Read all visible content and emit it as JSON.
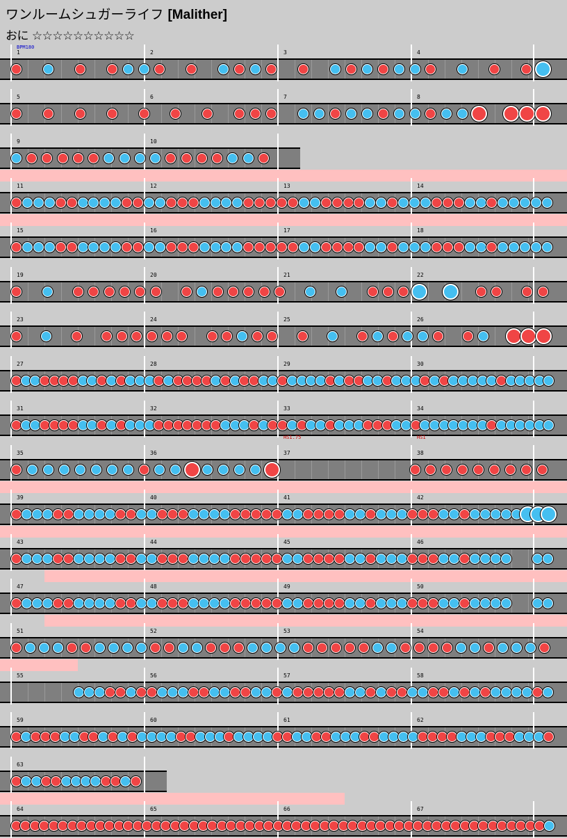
{
  "song": {
    "title": "ワンルームシュガーライフ",
    "difficulty": "[Malither]",
    "course": "おに",
    "stars": "☆☆☆☆☆☆☆☆☆☆"
  },
  "colors": {
    "background": "#cccccc",
    "lane": "#7f7f7f",
    "gogo": "#ffc0c0",
    "don": "#f04545",
    "ka": "#45bff0",
    "bpm_label": "#0000cc",
    "hs_label": "#cc0000"
  },
  "labels": {
    "bpm": "BPM180",
    "hs1": "HS1.75",
    "hs2": "HS1"
  },
  "rows": [
    {
      "measures": [
        "1",
        "2",
        "3",
        "4"
      ],
      "notes": "d.k.d.dkkd.d.kdkd.d.kdkdkkd.k.d.dK"
    },
    {
      "measures": [
        "5",
        "6",
        "7",
        "8"
      ],
      "notes": "d.d.d.d.d.d.d.ddd.kkdkkdkkdkkD.DDD"
    },
    {
      "measures": [
        "9",
        "10"
      ],
      "notes": "kdddddkkkkddddkkd"
    },
    {
      "measures": [
        "11",
        "12",
        "13",
        "14"
      ],
      "notes": "dkkkddkkkkddkkdddkkkkdddddkkddddkkdkkkdddkkdkkkkk",
      "gogo": [
        [
          0,
          4
        ]
      ]
    },
    {
      "measures": [
        "15",
        "16",
        "17",
        "18"
      ],
      "notes": "dkkkddkkkkddkkdddkkkkdddddkkddddkkdkkkdddkkdkkkkk",
      "gogo": [
        [
          0,
          4
        ]
      ]
    },
    {
      "measures": [
        "19",
        "20",
        "21",
        "22"
      ],
      "notes": "d.k.dddddd.dkddddd.k.k.dddK.K.dd.dd"
    },
    {
      "measures": [
        "23",
        "24",
        "25",
        "26"
      ],
      "notes": "d.k.d.dddddd.ddkdd.d.k.dkdkkd.dk.DDD"
    },
    {
      "measures": [
        "27",
        "28",
        "29",
        "30"
      ],
      "notes": "dkkddddkkdkdkkkdkddddkdkddkkdkkkkdkddkkdkkkdkdkkkkkdkkkkk"
    },
    {
      "measures": [
        "31",
        "32",
        "33",
        "34"
      ],
      "notes": "dkkddddkkdkdkkkdddddddkkkdkddkdkkdkkkdddkkdkkkkkkkdkkkkkk"
    },
    {
      "measures": [
        "35",
        "36",
        "37",
        "38"
      ],
      "notes": "dkkkkkkkdkkDkkkkD........ddddddddd",
      "labels": true
    },
    {
      "measures": [
        "39",
        "40",
        "41",
        "42"
      ],
      "notes": "dkkkddkkkkddkkdddkkkkdddddkkddddkkdkkkdddkkdkkkkkKKK",
      "gogo": [
        [
          0,
          4
        ]
      ]
    },
    {
      "measures": [
        "43",
        "44",
        "45",
        "46"
      ],
      "notes": "dkkkddkkkkddkkdddkkkkdddddkkddddkkdkkkdddkkdkkkk..kk",
      "gogo": [
        [
          0,
          4
        ]
      ]
    },
    {
      "measures": [
        "47",
        "48",
        "49",
        "50"
      ],
      "notes": "dkkkddkkkkddkkdddkkkkdddddkkddddkkdkkkdddkkdkkkk..kk",
      "gogo": [
        [
          0.25,
          4
        ]
      ]
    },
    {
      "measures": [
        "51",
        "52",
        "53",
        "54"
      ],
      "notes": "dkkkddkkkkddkkdddkkkkdddddkkddddkkdkkkd",
      "gogo": [
        [
          0.25,
          4
        ]
      ]
    },
    {
      "measures": [
        "55",
        "56",
        "57",
        "58"
      ],
      "notes": "......kkkddkddkkkddkkddkkdkdddddkkdkddkkddkdkdkkkkdk",
      "gogo": [
        [
          0,
          0.5
        ]
      ]
    },
    {
      "measures": [
        "59",
        "60",
        "61",
        "62"
      ],
      "notes": "dkdddkkddkdkdkkkkddkkkdkkkkddkkddkkkddkkkkddddkkkdddkkkd"
    },
    {
      "measures": [
        "63"
      ],
      "notes": "dkkddkkkkddkd"
    },
    {
      "measures": [
        "64",
        "65",
        "66",
        "67"
      ],
      "notes": "dddddddddddddddddddddddddddddddddddddddddddddddddddddddddk",
      "gogo": [
        [
          0,
          2.5
        ]
      ]
    }
  ]
}
